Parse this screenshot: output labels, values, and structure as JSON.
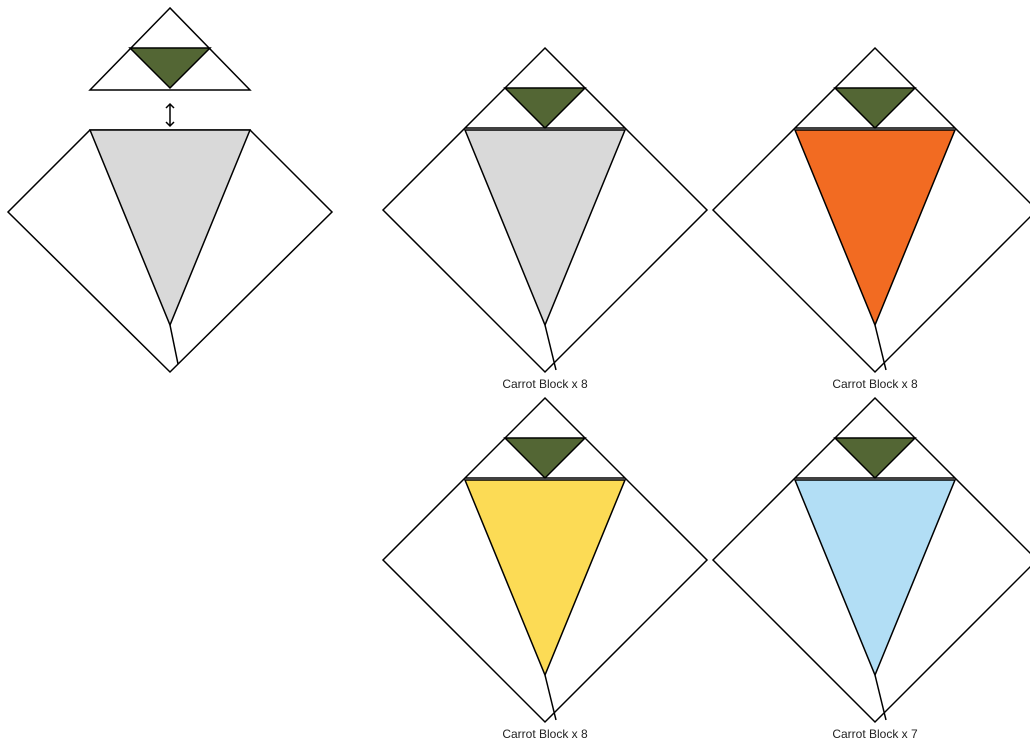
{
  "blocks": [
    {
      "label": "Carrot Block x 8",
      "fill": "#d9d9d9"
    },
    {
      "label": "Carrot Block x 8",
      "fill": "#f26b22"
    },
    {
      "label": "Carrot Block x 8",
      "fill": "#fcdb55"
    },
    {
      "label": "Carrot Block x 7",
      "fill": "#b2def5"
    }
  ]
}
